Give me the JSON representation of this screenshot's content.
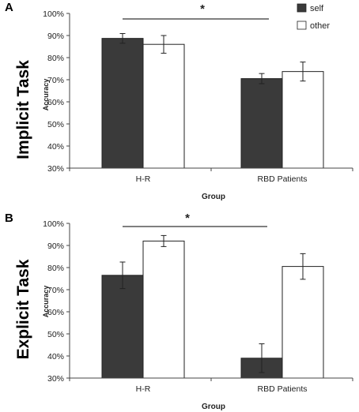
{
  "chart_data": [
    {
      "type": "bar",
      "panel_letter": "A",
      "side_title": "Implicit Task",
      "xlabel": "Group",
      "ylabel": "Accuracy",
      "categories": [
        "H-R",
        "RBD Patients"
      ],
      "ylim": [
        0.3,
        1.0
      ],
      "ytick_labels": [
        "30%",
        "40%",
        "50%",
        "60%",
        "70%",
        "80%",
        "90%",
        "100%"
      ],
      "series": [
        {
          "name": "self",
          "values": [
            0.887,
            0.705
          ],
          "errors": [
            0.022,
            0.023
          ]
        },
        {
          "name": "other",
          "values": [
            0.86,
            0.737
          ],
          "errors": [
            0.04,
            0.043
          ]
        }
      ],
      "significance_marker": "*",
      "legend_position": "top-right",
      "grid": false
    },
    {
      "type": "bar",
      "panel_letter": "B",
      "side_title": "Explicit Task",
      "xlabel": "Group",
      "ylabel": "Accuracy",
      "categories": [
        "H-R",
        "RBD Patients"
      ],
      "ylim": [
        0.3,
        1.0
      ],
      "ytick_labels": [
        "30%",
        "40%",
        "50%",
        "60%",
        "70%",
        "80%",
        "90%",
        "100%"
      ],
      "series": [
        {
          "name": "self",
          "values": [
            0.765,
            0.39
          ],
          "errors": [
            0.06,
            0.065
          ]
        },
        {
          "name": "other",
          "values": [
            0.92,
            0.805
          ],
          "errors": [
            0.025,
            0.058
          ]
        }
      ],
      "significance_marker": "*",
      "grid": false
    }
  ],
  "colors": {
    "self": "#3a3a3a",
    "other": "#ffffff",
    "axis": "#444444",
    "text": "#222222"
  }
}
